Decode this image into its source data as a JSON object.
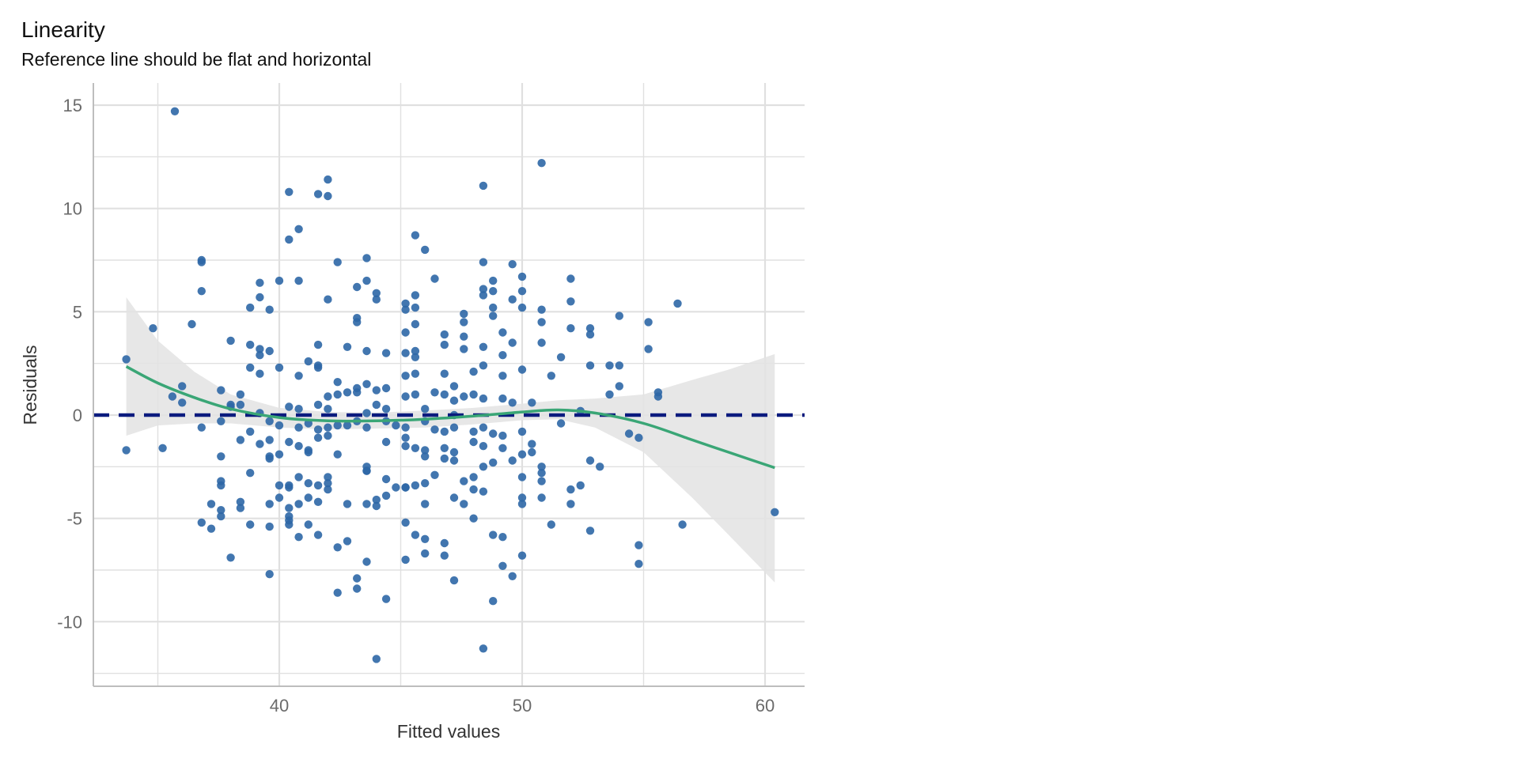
{
  "chart_data": {
    "type": "scatter",
    "title": "Linearity",
    "subtitle": "Reference line should be flat and horizontal",
    "xlabel": "Fitted values",
    "ylabel": "Residuals",
    "xlim": [
      32.5,
      62
    ],
    "ylim": [
      -13,
      16
    ],
    "x_ticks": [
      40,
      50,
      60
    ],
    "x_tick_labels": [
      "40",
      "50",
      "60"
    ],
    "y_ticks": [
      15,
      10,
      5,
      0,
      -5,
      -10
    ],
    "y_tick_labels": [
      "15",
      "10",
      "5",
      "0",
      "-5",
      "-10"
    ],
    "x_minor_ticks": [
      35,
      45,
      55
    ],
    "y_minor_ticks": [
      12.5,
      7.5,
      2.5,
      -2.5,
      -7.5,
      -12.5
    ],
    "grid": true,
    "colors": {
      "points": "#2E67A6",
      "smooth_line": "#3AA676",
      "confidence_band": "#E3E3E3",
      "reference_line": "#0B1B7E",
      "grid": "#E0E0E0"
    },
    "reference_line": {
      "y": 0,
      "style": "dashed"
    },
    "smooth": {
      "x": [
        33.7,
        35,
        36.5,
        38,
        40,
        42,
        44,
        46,
        48,
        50,
        51.5,
        53,
        55,
        57,
        58.5,
        60.4
      ],
      "y": [
        2.35,
        1.55,
        0.85,
        0.3,
        -0.12,
        -0.28,
        -0.28,
        -0.2,
        -0.05,
        0.15,
        0.25,
        0.1,
        -0.4,
        -1.2,
        -1.8,
        -2.55
      ],
      "ci_upper": [
        5.7,
        3.6,
        2.1,
        1.0,
        0.35,
        0.15,
        0.12,
        0.22,
        0.35,
        0.55,
        0.72,
        0.8,
        1.0,
        1.7,
        2.2,
        2.95
      ],
      "ci_lower": [
        -1.0,
        -0.5,
        -0.4,
        -0.4,
        -0.6,
        -0.7,
        -0.65,
        -0.6,
        -0.45,
        -0.25,
        -0.2,
        -0.6,
        -1.8,
        -4.0,
        -5.8,
        -8.1
      ]
    },
    "points": [
      [
        35.7,
        14.7
      ],
      [
        50.8,
        12.2
      ],
      [
        48.4,
        11.1
      ],
      [
        42.0,
        11.4
      ],
      [
        40.4,
        10.8
      ],
      [
        41.6,
        10.7
      ],
      [
        42.0,
        10.6
      ],
      [
        40.8,
        9.0
      ],
      [
        40.4,
        8.5
      ],
      [
        45.6,
        8.7
      ],
      [
        46.0,
        8.0
      ],
      [
        36.8,
        7.5
      ],
      [
        36.8,
        7.4
      ],
      [
        42.4,
        7.4
      ],
      [
        43.6,
        7.6
      ],
      [
        48.4,
        7.4
      ],
      [
        49.6,
        7.3
      ],
      [
        36.8,
        6.0
      ],
      [
        40.0,
        6.5
      ],
      [
        40.8,
        6.5
      ],
      [
        43.2,
        6.2
      ],
      [
        43.6,
        6.5
      ],
      [
        44.0,
        5.9
      ],
      [
        44.0,
        5.6
      ],
      [
        45.6,
        5.8
      ],
      [
        46.4,
        6.6
      ],
      [
        48.4,
        6.1
      ],
      [
        48.4,
        5.8
      ],
      [
        48.8,
        6.5
      ],
      [
        48.8,
        6.0
      ],
      [
        49.6,
        5.6
      ],
      [
        50.0,
        6.7
      ],
      [
        50.0,
        6.0
      ],
      [
        52.0,
        6.6
      ],
      [
        52.0,
        5.5
      ],
      [
        39.2,
        6.4
      ],
      [
        39.2,
        5.7
      ],
      [
        39.6,
        5.1
      ],
      [
        38.8,
        5.2
      ],
      [
        42.0,
        5.6
      ],
      [
        45.2,
        5.4
      ],
      [
        45.2,
        5.1
      ],
      [
        45.6,
        5.2
      ],
      [
        47.6,
        4.9
      ],
      [
        47.6,
        4.5
      ],
      [
        48.8,
        5.2
      ],
      [
        48.8,
        4.8
      ],
      [
        50.0,
        5.2
      ],
      [
        50.8,
        5.1
      ],
      [
        50.8,
        4.5
      ],
      [
        54.0,
        4.8
      ],
      [
        55.2,
        4.5
      ],
      [
        56.4,
        5.4
      ],
      [
        34.8,
        4.2
      ],
      [
        36.4,
        4.4
      ],
      [
        43.2,
        4.7
      ],
      [
        43.2,
        4.5
      ],
      [
        45.2,
        4.0
      ],
      [
        45.6,
        4.4
      ],
      [
        46.8,
        3.9
      ],
      [
        47.6,
        3.8
      ],
      [
        49.2,
        4.0
      ],
      [
        52.0,
        4.2
      ],
      [
        52.8,
        4.2
      ],
      [
        52.8,
        3.9
      ],
      [
        38.0,
        3.6
      ],
      [
        38.8,
        3.4
      ],
      [
        39.2,
        3.2
      ],
      [
        39.2,
        2.9
      ],
      [
        39.6,
        3.1
      ],
      [
        41.6,
        3.4
      ],
      [
        42.8,
        3.3
      ],
      [
        43.6,
        3.1
      ],
      [
        44.4,
        3.0
      ],
      [
        45.2,
        3.0
      ],
      [
        45.6,
        3.1
      ],
      [
        45.6,
        2.8
      ],
      [
        46.8,
        3.4
      ],
      [
        47.6,
        3.2
      ],
      [
        48.4,
        3.3
      ],
      [
        49.2,
        2.9
      ],
      [
        49.6,
        3.5
      ],
      [
        50.8,
        3.5
      ],
      [
        51.6,
        2.8
      ],
      [
        55.2,
        3.2
      ],
      [
        33.7,
        2.7
      ],
      [
        38.8,
        2.3
      ],
      [
        39.2,
        2.0
      ],
      [
        40.0,
        2.3
      ],
      [
        40.8,
        1.9
      ],
      [
        41.2,
        2.6
      ],
      [
        41.6,
        2.4
      ],
      [
        41.6,
        2.3
      ],
      [
        42.4,
        1.6
      ],
      [
        43.2,
        1.3
      ],
      [
        43.6,
        1.5
      ],
      [
        44.4,
        1.3
      ],
      [
        45.2,
        1.9
      ],
      [
        45.6,
        2.0
      ],
      [
        46.8,
        2.0
      ],
      [
        47.2,
        1.4
      ],
      [
        48.0,
        2.1
      ],
      [
        48.4,
        2.4
      ],
      [
        49.2,
        1.9
      ],
      [
        50.0,
        2.2
      ],
      [
        51.2,
        1.9
      ],
      [
        52.8,
        2.4
      ],
      [
        53.6,
        2.4
      ],
      [
        54.0,
        2.4
      ],
      [
        54.0,
        1.4
      ],
      [
        35.6,
        0.9
      ],
      [
        36.0,
        1.4
      ],
      [
        36.0,
        0.6
      ],
      [
        37.6,
        1.2
      ],
      [
        38.4,
        1.0
      ],
      [
        40.4,
        0.4
      ],
      [
        40.8,
        0.3
      ],
      [
        42.0,
        0.9
      ],
      [
        42.0,
        0.3
      ],
      [
        42.4,
        1.0
      ],
      [
        42.8,
        1.1
      ],
      [
        43.2,
        1.1
      ],
      [
        44.0,
        1.2
      ],
      [
        44.0,
        0.5
      ],
      [
        44.4,
        0.3
      ],
      [
        45.2,
        0.9
      ],
      [
        45.6,
        1.0
      ],
      [
        46.0,
        0.3
      ],
      [
        46.4,
        1.1
      ],
      [
        46.8,
        1.0
      ],
      [
        47.2,
        0.7
      ],
      [
        47.6,
        0.9
      ],
      [
        48.0,
        1.0
      ],
      [
        48.4,
        0.8
      ],
      [
        49.2,
        0.8
      ],
      [
        49.6,
        0.6
      ],
      [
        50.4,
        0.6
      ],
      [
        52.4,
        0.2
      ],
      [
        53.6,
        1.0
      ],
      [
        55.6,
        1.1
      ],
      [
        55.6,
        0.9
      ],
      [
        38.0,
        0.5
      ],
      [
        38.0,
        0.4
      ],
      [
        38.4,
        0.5
      ],
      [
        39.2,
        0.1
      ],
      [
        41.6,
        0.5
      ],
      [
        43.6,
        0.1
      ],
      [
        47.2,
        0.0
      ],
      [
        36.8,
        -0.6
      ],
      [
        37.6,
        -0.3
      ],
      [
        38.4,
        -1.2
      ],
      [
        38.8,
        -0.8
      ],
      [
        39.2,
        -1.4
      ],
      [
        39.6,
        -0.3
      ],
      [
        39.6,
        -1.2
      ],
      [
        40.0,
        -0.5
      ],
      [
        40.8,
        -0.6
      ],
      [
        41.2,
        -0.4
      ],
      [
        41.6,
        -0.7
      ],
      [
        42.0,
        -0.6
      ],
      [
        42.4,
        -0.5
      ],
      [
        42.8,
        -0.5
      ],
      [
        43.2,
        -0.3
      ],
      [
        43.6,
        -0.6
      ],
      [
        44.4,
        -0.3
      ],
      [
        44.8,
        -0.5
      ],
      [
        45.2,
        -0.6
      ],
      [
        46.0,
        -0.3
      ],
      [
        46.4,
        -0.7
      ],
      [
        46.8,
        -0.8
      ],
      [
        47.2,
        -0.6
      ],
      [
        48.0,
        -0.8
      ],
      [
        48.4,
        -0.6
      ],
      [
        48.8,
        -0.9
      ],
      [
        49.2,
        -1.0
      ],
      [
        50.0,
        -0.8
      ],
      [
        51.6,
        -0.4
      ],
      [
        54.4,
        -0.9
      ],
      [
        54.8,
        -1.1
      ],
      [
        33.7,
        -1.7
      ],
      [
        35.2,
        -1.6
      ],
      [
        37.6,
        -2.0
      ],
      [
        39.6,
        -2.0
      ],
      [
        39.6,
        -2.1
      ],
      [
        40.0,
        -1.9
      ],
      [
        40.4,
        -1.3
      ],
      [
        40.8,
        -1.5
      ],
      [
        41.2,
        -1.7
      ],
      [
        41.2,
        -1.8
      ],
      [
        41.6,
        -1.1
      ],
      [
        42.0,
        -1.0
      ],
      [
        42.4,
        -1.9
      ],
      [
        43.6,
        -2.5
      ],
      [
        43.6,
        -2.7
      ],
      [
        44.4,
        -1.3
      ],
      [
        45.2,
        -1.1
      ],
      [
        45.2,
        -1.5
      ],
      [
        45.6,
        -1.6
      ],
      [
        46.0,
        -1.7
      ],
      [
        46.0,
        -2.0
      ],
      [
        46.8,
        -1.6
      ],
      [
        46.8,
        -2.1
      ],
      [
        47.2,
        -1.8
      ],
      [
        47.2,
        -2.2
      ],
      [
        48.0,
        -1.3
      ],
      [
        48.4,
        -1.5
      ],
      [
        48.4,
        -2.5
      ],
      [
        48.8,
        -2.3
      ],
      [
        49.2,
        -1.6
      ],
      [
        49.6,
        -2.2
      ],
      [
        50.0,
        -1.9
      ],
      [
        50.4,
        -1.4
      ],
      [
        50.4,
        -1.8
      ],
      [
        50.8,
        -2.5
      ],
      [
        52.8,
        -2.2
      ],
      [
        53.2,
        -2.5
      ],
      [
        37.6,
        -3.2
      ],
      [
        37.6,
        -3.4
      ],
      [
        38.8,
        -2.8
      ],
      [
        40.0,
        -3.4
      ],
      [
        40.4,
        -3.5
      ],
      [
        40.4,
        -3.4
      ],
      [
        40.8,
        -3.0
      ],
      [
        41.2,
        -3.3
      ],
      [
        41.6,
        -3.4
      ],
      [
        42.0,
        -3.0
      ],
      [
        42.0,
        -3.3
      ],
      [
        42.0,
        -3.6
      ],
      [
        43.6,
        -2.7
      ],
      [
        44.4,
        -3.1
      ],
      [
        44.8,
        -3.5
      ],
      [
        45.2,
        -3.5
      ],
      [
        45.6,
        -3.4
      ],
      [
        46.0,
        -3.3
      ],
      [
        46.4,
        -2.9
      ],
      [
        47.6,
        -3.2
      ],
      [
        48.0,
        -3.0
      ],
      [
        48.0,
        -3.6
      ],
      [
        48.4,
        -3.7
      ],
      [
        50.0,
        -3.0
      ],
      [
        50.8,
        -2.8
      ],
      [
        50.8,
        -3.2
      ],
      [
        52.0,
        -3.6
      ],
      [
        52.4,
        -3.4
      ],
      [
        37.2,
        -4.3
      ],
      [
        37.6,
        -4.6
      ],
      [
        37.6,
        -4.9
      ],
      [
        38.4,
        -4.2
      ],
      [
        38.4,
        -4.5
      ],
      [
        39.6,
        -4.3
      ],
      [
        40.0,
        -4.0
      ],
      [
        40.4,
        -4.5
      ],
      [
        40.4,
        -4.9
      ],
      [
        40.8,
        -4.3
      ],
      [
        41.2,
        -4.0
      ],
      [
        41.6,
        -4.2
      ],
      [
        42.8,
        -4.3
      ],
      [
        43.6,
        -4.3
      ],
      [
        44.0,
        -4.1
      ],
      [
        44.0,
        -4.4
      ],
      [
        44.4,
        -3.9
      ],
      [
        45.2,
        -3.5
      ],
      [
        46.0,
        -4.3
      ],
      [
        47.2,
        -4.0
      ],
      [
        47.6,
        -4.3
      ],
      [
        48.0,
        -5.0
      ],
      [
        50.0,
        -4.0
      ],
      [
        50.0,
        -4.3
      ],
      [
        50.8,
        -4.0
      ],
      [
        52.0,
        -4.3
      ],
      [
        36.8,
        -5.2
      ],
      [
        37.2,
        -5.5
      ],
      [
        38.8,
        -5.3
      ],
      [
        39.6,
        -5.4
      ],
      [
        40.4,
        -5.1
      ],
      [
        40.4,
        -5.3
      ],
      [
        41.2,
        -5.3
      ],
      [
        41.6,
        -5.8
      ],
      [
        42.8,
        -6.1
      ],
      [
        42.4,
        -6.4
      ],
      [
        45.2,
        -5.2
      ],
      [
        45.6,
        -5.8
      ],
      [
        46.0,
        -6.0
      ],
      [
        46.0,
        -6.7
      ],
      [
        46.8,
        -6.2
      ],
      [
        46.8,
        -6.8
      ],
      [
        48.8,
        -5.8
      ],
      [
        49.2,
        -5.9
      ],
      [
        50.0,
        -6.8
      ],
      [
        51.2,
        -5.3
      ],
      [
        52.8,
        -5.6
      ],
      [
        54.8,
        -6.3
      ],
      [
        56.6,
        -5.3
      ],
      [
        60.4,
        -4.7
      ],
      [
        38.0,
        -6.9
      ],
      [
        39.6,
        -7.7
      ],
      [
        40.8,
        -5.9
      ],
      [
        43.2,
        -7.9
      ],
      [
        43.2,
        -8.4
      ],
      [
        43.6,
        -7.1
      ],
      [
        44.4,
        -8.9
      ],
      [
        45.2,
        -7.0
      ],
      [
        47.2,
        -8.0
      ],
      [
        49.2,
        -7.3
      ],
      [
        49.6,
        -7.8
      ],
      [
        54.8,
        -7.2
      ],
      [
        42.4,
        -8.6
      ],
      [
        48.8,
        -9.0
      ],
      [
        48.4,
        -11.3
      ],
      [
        44.0,
        -11.8
      ]
    ]
  }
}
